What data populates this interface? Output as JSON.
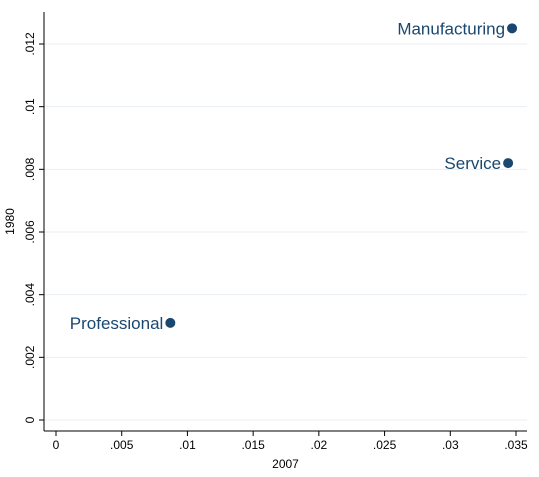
{
  "chart_data": {
    "type": "scatter",
    "xlabel": "2007",
    "ylabel": "1980",
    "xlim": [
      0,
      0.035
    ],
    "ylim": [
      0,
      0.0125
    ],
    "x_ticks": [
      0,
      0.005,
      0.01,
      0.015,
      0.02,
      0.025,
      0.03,
      0.035
    ],
    "x_tick_labels": [
      "0",
      ".005",
      ".01",
      ".015",
      ".02",
      ".025",
      ".03",
      ".035"
    ],
    "y_ticks": [
      0,
      0.002,
      0.004,
      0.006,
      0.008,
      0.01,
      0.012
    ],
    "y_tick_labels": [
      "0",
      ".002",
      ".004",
      ".006",
      ".008",
      ".01",
      ".012"
    ],
    "grid": "horizontal",
    "marker_color": "#1a476f",
    "points": [
      {
        "label": "Manufacturing",
        "x": 0.0347,
        "y": 0.0125
      },
      {
        "label": "Service",
        "x": 0.0344,
        "y": 0.0082
      },
      {
        "label": "Professional",
        "x": 0.0087,
        "y": 0.0031
      }
    ]
  }
}
